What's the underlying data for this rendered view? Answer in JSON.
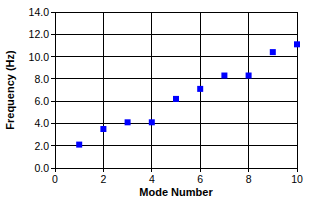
{
  "chart_data": {
    "type": "scatter",
    "x_label": "Mode Number",
    "y_label": "Frequency (Hz)",
    "x": [
      1,
      2,
      3,
      4,
      5,
      6,
      7,
      8,
      9,
      10
    ],
    "values": [
      2.1,
      3.5,
      4.1,
      4.1,
      6.2,
      7.1,
      8.3,
      8.3,
      10.4,
      11.1
    ],
    "color": "#0000ff",
    "marker": "square",
    "xlim": [
      0,
      10
    ],
    "xticks": [
      0,
      2,
      4,
      6,
      8,
      10
    ],
    "ylim": [
      0,
      14
    ],
    "yticks": [
      {
        "value": 0,
        "label": "0.0"
      },
      {
        "value": 2,
        "label": "2.0"
      },
      {
        "value": 4,
        "label": "4.0"
      },
      {
        "value": 6,
        "label": "6.0"
      },
      {
        "value": 8,
        "label": "8.0"
      },
      {
        "value": 10,
        "label": "10.0"
      },
      {
        "value": 12,
        "label": "12.0"
      },
      {
        "value": 14,
        "label": "14.0"
      }
    ],
    "grid": true
  }
}
